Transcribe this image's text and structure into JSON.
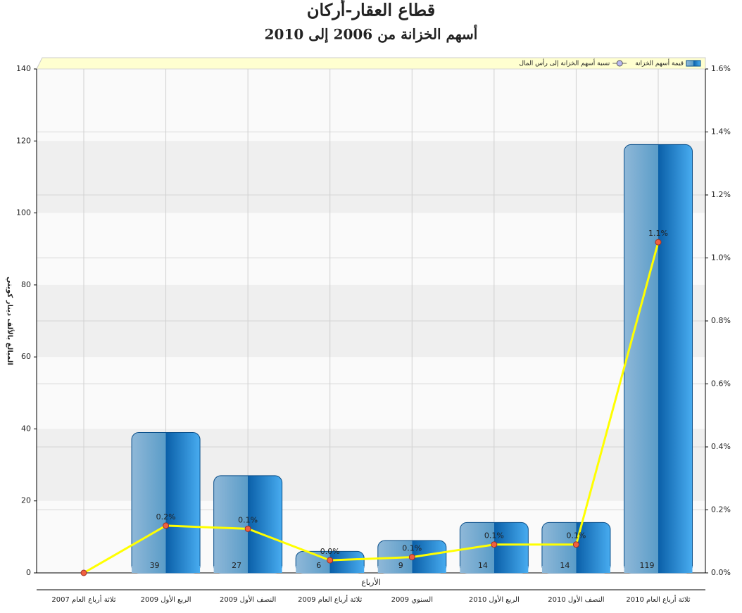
{
  "chart_data": {
    "type": "bar",
    "title": "قطاع العقار-أركان",
    "subtitle": "أسهم الخزانة من 2006 إلى 2010",
    "x_label": "الأرباع",
    "y_label": "المبالغ بالألف دينار كويتي",
    "categories": [
      "ثلاثة أرباع العام 2007",
      "الربع الأول 2009",
      "النصف الأول 2009",
      "ثلاثة أرباع العام 2009",
      "السنوي 2009",
      "الربع الأول 2010",
      "النصف الأول 2010",
      "ثلاثة أرباع العام 2010"
    ],
    "series": [
      {
        "name": "قيمة أسهم الخزانة",
        "type": "bar",
        "color": "#1f78c8",
        "values": [
          null,
          39,
          27,
          6,
          9,
          14,
          14,
          119
        ]
      },
      {
        "name": "نسبة أسهم الخزانة إلى رأس المال",
        "type": "line",
        "axis": "y2",
        "color": "#ffff00",
        "values": [
          0,
          0.15,
          0.14,
          0.04,
          0.05,
          0.09,
          0.09,
          1.05
        ],
        "value_labels": [
          null,
          "0.2%",
          "0.1%",
          "0.0%",
          "0.1%",
          "0.1%",
          "0.1%",
          "1.1%"
        ]
      }
    ],
    "ylim": [
      0,
      140
    ],
    "yticks": [
      0,
      20,
      40,
      60,
      80,
      100,
      120,
      140
    ],
    "y2lim": [
      0,
      1.6
    ],
    "y2ticks": [
      {
        "value": 0,
        "label": "0.0%"
      },
      {
        "value": 0.2,
        "label": "0.2%"
      },
      {
        "value": 0.4,
        "label": "0.4%"
      },
      {
        "value": 0.6,
        "label": "0.6%"
      },
      {
        "value": 0.8,
        "label": "0.8%"
      },
      {
        "value": 1.0,
        "label": "1.0%"
      },
      {
        "value": 1.2,
        "label": "1.2%"
      },
      {
        "value": 1.4,
        "label": "1.4%"
      },
      {
        "value": 1.6,
        "label": "1.6%"
      }
    ],
    "grid": true,
    "legend": "top"
  }
}
